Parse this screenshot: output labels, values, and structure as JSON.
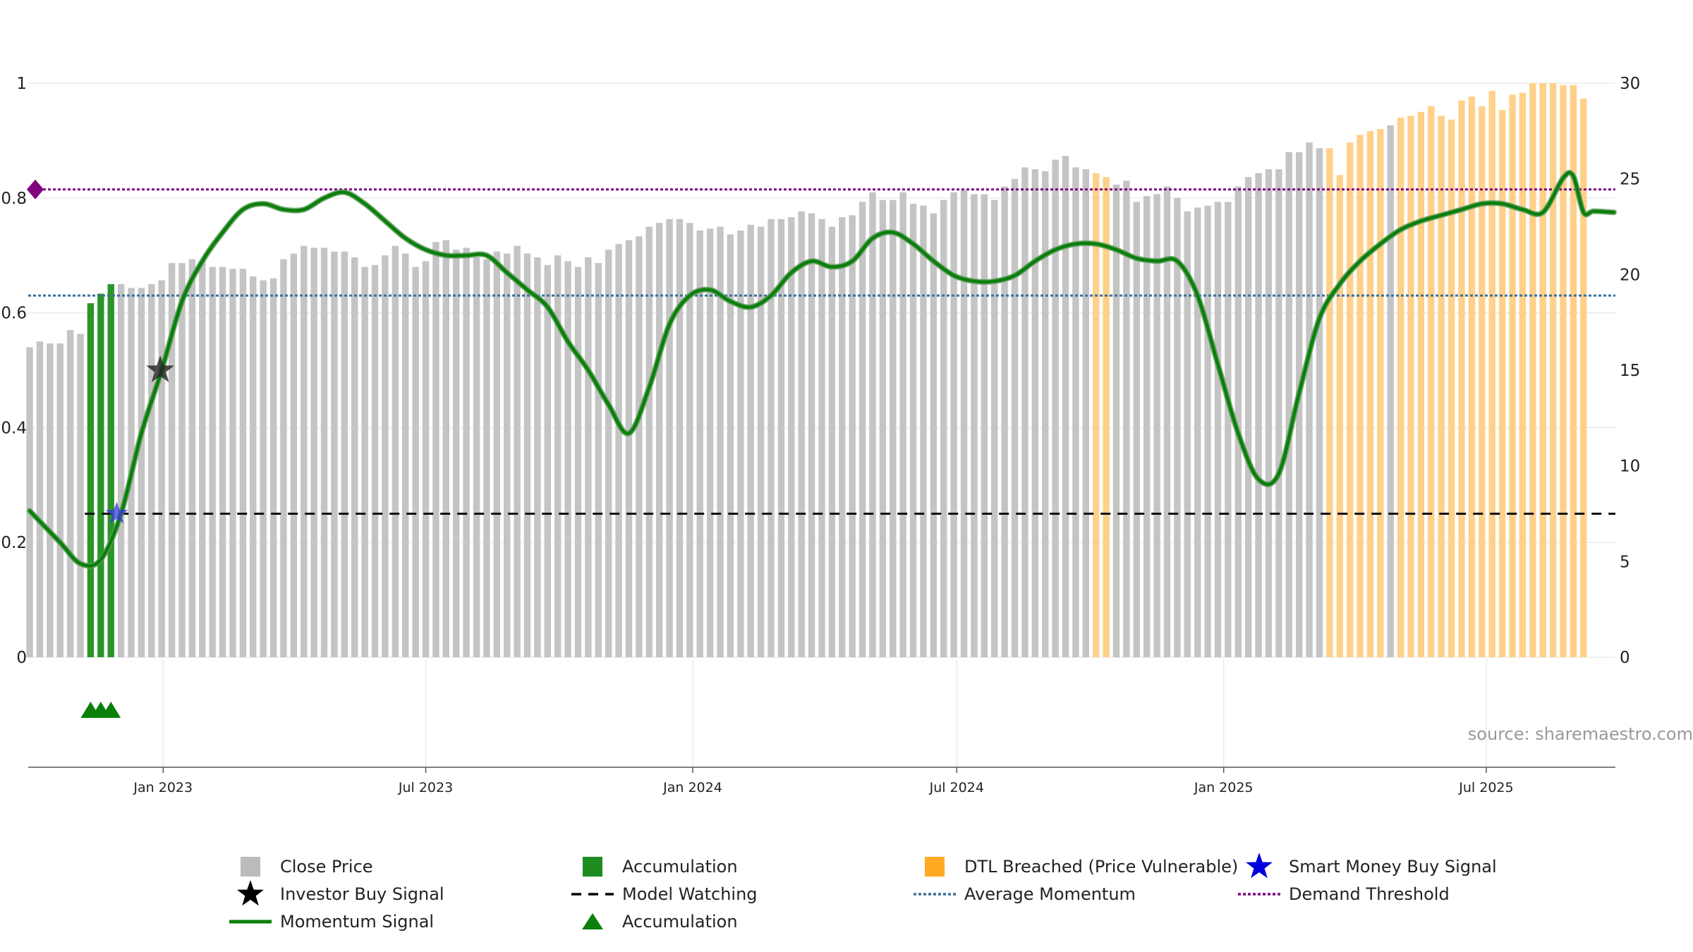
{
  "chart_data": {
    "type": "bar",
    "source": "source: sharemaestro.com",
    "x_ticks": [
      "Jan 2023",
      "Jul 2023",
      "Jan 2024",
      "Jul 2024",
      "Jan 2025",
      "Jul 2025"
    ],
    "x_tick_dates": [
      "2023-01-01",
      "2023-07-01",
      "2024-01-01",
      "2024-07-01",
      "2025-01-01",
      "2025-07-01"
    ],
    "x_range": [
      "2022-09-30",
      "2025-09-28"
    ],
    "left_axis": {
      "ticks": [
        0,
        0.2,
        0.4,
        0.6,
        0.8,
        1
      ],
      "ylim": [
        0,
        1
      ]
    },
    "right_axis": {
      "ticks": [
        0,
        5,
        10,
        15,
        20,
        25,
        30
      ],
      "ylim": [
        0,
        30
      ]
    },
    "series": [
      {
        "name": "Close Price",
        "axis": "right",
        "start_date": "2022-10-01",
        "interval_days": 7,
        "values": [
          16.2,
          16.5,
          16.4,
          16.4,
          17.1,
          16.9,
          18.4,
          18.6,
          19.1,
          19.5,
          19.3,
          19.3,
          19.5,
          19.7,
          20.6,
          20.6,
          20.8,
          20.7,
          20.4,
          20.4,
          20.3,
          20.3,
          19.9,
          19.7,
          19.8,
          20.8,
          21.1,
          21.5,
          21.4,
          21.4,
          21.2,
          21.2,
          20.9,
          20.4,
          20.5,
          21.0,
          21.5,
          21.1,
          20.4,
          20.7,
          21.7,
          21.8,
          21.3,
          21.4,
          20.9,
          20.8,
          21.2,
          21.1,
          21.5,
          21.1,
          20.9,
          20.5,
          21.0,
          20.7,
          20.4,
          20.9,
          20.6,
          21.3,
          21.6,
          21.8,
          22.0,
          22.5,
          22.7,
          22.9,
          22.9,
          22.7,
          22.3,
          22.4,
          22.5,
          22.1,
          22.3,
          22.6,
          22.5,
          22.9,
          22.9,
          23.0,
          23.3,
          23.2,
          22.9,
          22.5,
          23.0,
          23.1,
          23.8,
          24.3,
          23.9,
          23.9,
          24.3,
          23.7,
          23.6,
          23.2,
          23.9,
          24.3,
          24.4,
          24.2,
          24.2,
          23.9,
          24.6,
          25.0,
          25.6,
          25.5,
          25.4,
          26.0,
          26.2,
          25.6,
          25.5,
          25.3,
          25.1,
          24.7,
          24.9,
          23.8,
          24.1,
          24.2,
          24.6,
          24.0,
          23.3,
          23.5,
          23.6,
          23.8,
          23.8,
          24.6,
          25.1,
          25.3,
          25.5,
          25.5,
          26.4,
          26.4,
          26.9,
          26.6,
          26.6,
          25.2,
          26.9,
          27.3,
          27.5,
          27.6,
          27.8,
          28.2,
          28.3,
          28.5,
          28.8,
          28.3,
          28.1,
          29.1,
          29.3,
          28.8,
          29.6,
          28.6,
          29.4,
          29.5,
          30.0,
          30.0,
          30.0,
          29.9,
          29.9,
          29.2
        ]
      },
      {
        "name": "Accumulation",
        "axis": "right",
        "dates": [
          "2022-11-12",
          "2022-11-19",
          "2022-11-26"
        ],
        "values": [
          18.5,
          19.0,
          19.5
        ]
      },
      {
        "name": "DTL Breached (Price Vulnerable)",
        "axis": "right",
        "date_ranges": [
          [
            "2024-10-05",
            "2024-10-12"
          ],
          [
            "2025-03-15",
            "2025-04-19"
          ],
          [
            "2025-05-03",
            "2025-09-27"
          ]
        ]
      },
      {
        "name": "Momentum Signal",
        "axis": "left",
        "points": [
          [
            "2022-10-01",
            0.255
          ],
          [
            "2022-10-22",
            0.2
          ],
          [
            "2022-11-05",
            0.163
          ],
          [
            "2022-11-19",
            0.17
          ],
          [
            "2022-12-03",
            0.25
          ],
          [
            "2022-12-17",
            0.39
          ],
          [
            "2022-12-31",
            0.5
          ],
          [
            "2023-01-14",
            0.62
          ],
          [
            "2023-01-28",
            0.69
          ],
          [
            "2023-02-11",
            0.74
          ],
          [
            "2023-02-25",
            0.78
          ],
          [
            "2023-03-11",
            0.79
          ],
          [
            "2023-03-25",
            0.78
          ],
          [
            "2023-04-08",
            0.78
          ],
          [
            "2023-04-22",
            0.8
          ],
          [
            "2023-05-06",
            0.81
          ],
          [
            "2023-05-20",
            0.79
          ],
          [
            "2023-06-03",
            0.76
          ],
          [
            "2023-06-17",
            0.73
          ],
          [
            "2023-07-01",
            0.71
          ],
          [
            "2023-07-15",
            0.7
          ],
          [
            "2023-07-29",
            0.7
          ],
          [
            "2023-08-12",
            0.7
          ],
          [
            "2023-08-26",
            0.67
          ],
          [
            "2023-09-09",
            0.64
          ],
          [
            "2023-09-23",
            0.61
          ],
          [
            "2023-10-07",
            0.55
          ],
          [
            "2023-10-21",
            0.5
          ],
          [
            "2023-11-04",
            0.44
          ],
          [
            "2023-11-18",
            0.39
          ],
          [
            "2023-12-02",
            0.47
          ],
          [
            "2023-12-16",
            0.58
          ],
          [
            "2023-12-30",
            0.63
          ],
          [
            "2024-01-13",
            0.64
          ],
          [
            "2024-01-27",
            0.62
          ],
          [
            "2024-02-10",
            0.61
          ],
          [
            "2024-02-24",
            0.63
          ],
          [
            "2024-03-09",
            0.67
          ],
          [
            "2024-03-23",
            0.69
          ],
          [
            "2024-04-06",
            0.68
          ],
          [
            "2024-04-20",
            0.69
          ],
          [
            "2024-05-04",
            0.73
          ],
          [
            "2024-05-18",
            0.74
          ],
          [
            "2024-06-01",
            0.72
          ],
          [
            "2024-06-15",
            0.69
          ],
          [
            "2024-06-29",
            0.665
          ],
          [
            "2024-07-13",
            0.655
          ],
          [
            "2024-07-27",
            0.655
          ],
          [
            "2024-08-10",
            0.665
          ],
          [
            "2024-08-24",
            0.69
          ],
          [
            "2024-09-07",
            0.71
          ],
          [
            "2024-09-21",
            0.72
          ],
          [
            "2024-10-05",
            0.72
          ],
          [
            "2024-10-19",
            0.71
          ],
          [
            "2024-11-02",
            0.695
          ],
          [
            "2024-11-16",
            0.69
          ],
          [
            "2024-11-30",
            0.69
          ],
          [
            "2024-12-14",
            0.63
          ],
          [
            "2024-12-28",
            0.51
          ],
          [
            "2025-01-11",
            0.39
          ],
          [
            "2025-01-25",
            0.31
          ],
          [
            "2025-02-08",
            0.32
          ],
          [
            "2025-02-22",
            0.46
          ],
          [
            "2025-03-08",
            0.59
          ],
          [
            "2025-03-22",
            0.65
          ],
          [
            "2025-04-05",
            0.69
          ],
          [
            "2025-04-19",
            0.72
          ],
          [
            "2025-05-03",
            0.745
          ],
          [
            "2025-05-17",
            0.76
          ],
          [
            "2025-05-31",
            0.77
          ],
          [
            "2025-06-14",
            0.78
          ],
          [
            "2025-06-28",
            0.79
          ],
          [
            "2025-07-12",
            0.79
          ],
          [
            "2025-07-26",
            0.78
          ],
          [
            "2025-08-09",
            0.775
          ],
          [
            "2025-08-23",
            0.835
          ],
          [
            "2025-08-30",
            0.838
          ],
          [
            "2025-09-06",
            0.775
          ],
          [
            "2025-09-13",
            0.777
          ],
          [
            "2025-09-27",
            0.775
          ]
        ]
      },
      {
        "name": "Investor Buy Signal",
        "axis": "left",
        "points": [
          [
            "2022-12-30",
            0.5
          ]
        ]
      },
      {
        "name": "Smart Money Buy Signal",
        "axis": "left",
        "points": [
          [
            "2022-11-30",
            0.25
          ]
        ]
      },
      {
        "name": "Model Watching",
        "axis": "left",
        "from": "2022-11-08",
        "to": "2025-09-28",
        "value": 0.25
      },
      {
        "name": "Average Momentum",
        "axis": "left",
        "value": 0.63
      },
      {
        "name": "Demand Threshold",
        "axis": "left",
        "value": 0.815
      },
      {
        "name": "Accumulation",
        "axis": "left",
        "marker": "triangle",
        "dates": [
          "2022-11-12",
          "2022-11-19",
          "2022-11-26"
        ]
      }
    ],
    "legend": {
      "placement": "bottom",
      "entries": [
        {
          "label": "Close Price",
          "symbol": "square",
          "color": "#bbbbbb"
        },
        {
          "label": "Accumulation",
          "symbol": "square",
          "color": "#1e8c1e"
        },
        {
          "label": "DTL Breached (Price Vulnerable)",
          "symbol": "square",
          "color": "#ffaa22"
        },
        {
          "label": "Smart Money Buy Signal",
          "symbol": "star",
          "color": "#0000dd"
        },
        {
          "label": "Investor Buy Signal",
          "symbol": "star",
          "color": "#000000"
        },
        {
          "label": "Model Watching",
          "symbol": "dashed",
          "color": "#000000"
        },
        {
          "label": "Average Momentum",
          "symbol": "dotted",
          "color": "#3a6f9a"
        },
        {
          "label": "Demand Threshold",
          "symbol": "dotted",
          "color": "#800080"
        },
        {
          "label": "Momentum Signal",
          "symbol": "line",
          "color": "#0a7f0a"
        },
        {
          "label": "Accumulation",
          "symbol": "triangle",
          "color": "#0a7f0a"
        }
      ]
    },
    "colors": {
      "close_price": "#c4c4c4",
      "accumulation": "#2a962a",
      "dtl": "#ffd08a",
      "momentum": "#0a7f0a",
      "momentum_shadow": "#5a9a5a",
      "average_momentum": "#3a6f9a",
      "demand_threshold": "#800080",
      "model_watching": "#111111",
      "smart_money": "#3b3bdd",
      "investor": "#222222",
      "grid": "#e6e6e6",
      "axis": "#555555",
      "text": "#222222",
      "source": "#999999"
    }
  }
}
